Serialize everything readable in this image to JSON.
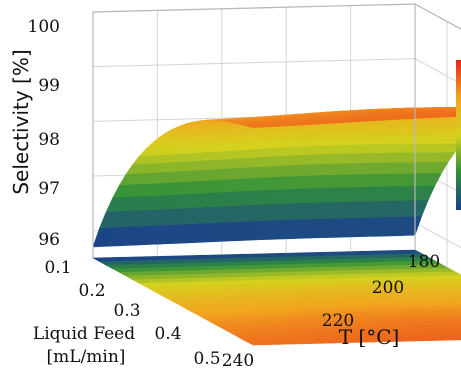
{
  "chart_data": {
    "type": "surface-3d",
    "z_axis": {
      "label": "Selectivity [%]",
      "range": [
        95.5,
        100
      ],
      "ticks": [
        "96",
        "97",
        "98",
        "99",
        "100"
      ]
    },
    "x_axis": {
      "label_line1": "Liquid Feed",
      "label_line2": "[mL/min]",
      "range": [
        0.1,
        0.5
      ],
      "ticks": [
        "0.1",
        "0.2",
        "0.3",
        "0.4",
        "0.5"
      ]
    },
    "y_axis": {
      "label": "T [°C]",
      "range": [
        180,
        240
      ],
      "ticks": [
        "180",
        "200",
        "220",
        "240"
      ]
    },
    "surface": {
      "description_values": [
        {
          "liquid_feed": 0.1,
          "T": 240,
          "selectivity": 95.8
        },
        {
          "liquid_feed": 0.1,
          "T": 180,
          "selectivity": 99.2
        },
        {
          "liquid_feed": 0.3,
          "T": 180,
          "selectivity": 99.9
        },
        {
          "liquid_feed": 0.5,
          "T": 180,
          "selectivity": 99.6
        },
        {
          "liquid_feed": 0.5,
          "T": 240,
          "selectivity": 99.1
        }
      ],
      "optimum": {
        "liquid_feed": 0.32,
        "T": 205,
        "selectivity": 99.95
      }
    },
    "colormap": [
      "#1a3d8f",
      "#2f8f3a",
      "#d4d21e",
      "#f2a51f",
      "#e8221b"
    ],
    "grid": true,
    "colorbar": "right"
  }
}
